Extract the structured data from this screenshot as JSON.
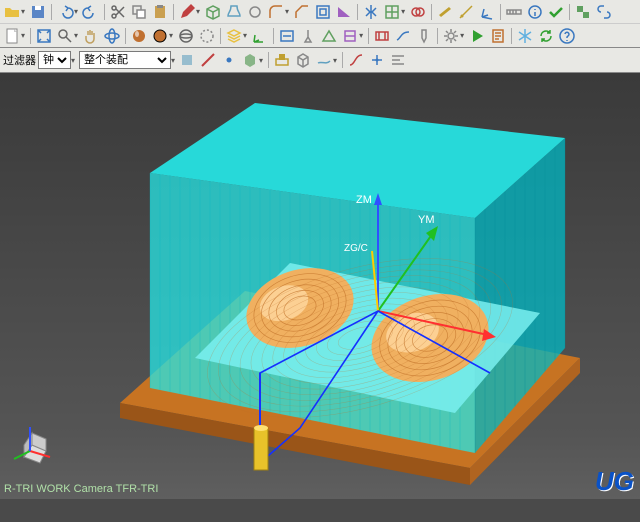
{
  "app": {
    "status_text": "R-TRI WORK Camera TFR-TRI",
    "watermark": "UG"
  },
  "filter": {
    "label": "过滤器",
    "mode_label": "钟",
    "assembly_selected": "整个装配"
  },
  "colors": {
    "toolbar_bg": "#e8e8e4",
    "viewport_top": "#3a3a3a",
    "viewport_bottom": "#5f5f5f",
    "model_ice": "#25e6e6",
    "model_ice_shade": "#00b8c4",
    "model_skin": "#f0b060",
    "model_skin_shade": "#c07028",
    "base_plate": "#c77322",
    "axis_x": "#ff3030",
    "axis_y": "#20c020",
    "axis_z": "#3050ff",
    "toolpath": "#1430ff",
    "status_color": "#b0e0a8",
    "watermark_color": "#0a52c7"
  },
  "axes": {
    "zm": "ZM",
    "ym": "YM",
    "zgc": "ZG/C"
  },
  "toolbar": {
    "row1": [
      {
        "name": "open-icon",
        "glyph": "folder",
        "c": "#e8c040"
      },
      {
        "name": "save-icon",
        "glyph": "floppy",
        "c": "#5a86c6"
      },
      {
        "name": "sep"
      },
      {
        "name": "undo-icon",
        "glyph": "undo",
        "c": "#3a78c0"
      },
      {
        "name": "redo-icon",
        "glyph": "redo",
        "c": "#3a78c0"
      },
      {
        "name": "sep"
      },
      {
        "name": "cut-icon",
        "glyph": "scissors",
        "c": "#666"
      },
      {
        "name": "copy-icon",
        "glyph": "copy",
        "c": "#888"
      },
      {
        "name": "paste-icon",
        "glyph": "paste",
        "c": "#caa050"
      },
      {
        "name": "sep"
      },
      {
        "name": "sketch-icon",
        "glyph": "pencil",
        "c": "#c04040"
      },
      {
        "name": "extrude-icon",
        "glyph": "box",
        "c": "#60a060"
      },
      {
        "name": "revolve-icon",
        "glyph": "vase",
        "c": "#60a0c0"
      },
      {
        "name": "hole-icon",
        "glyph": "circle",
        "c": "#888"
      },
      {
        "name": "blend-icon",
        "glyph": "fillet",
        "c": "#c07030"
      },
      {
        "name": "chamfer-icon",
        "glyph": "chamfer",
        "c": "#c07030"
      },
      {
        "name": "shell-icon",
        "glyph": "shell",
        "c": "#3a78c0"
      },
      {
        "name": "draft-icon",
        "glyph": "wedge",
        "c": "#a060c0"
      },
      {
        "name": "sep"
      },
      {
        "name": "mirror-icon",
        "glyph": "mirror",
        "c": "#3a78c0"
      },
      {
        "name": "pattern-icon",
        "glyph": "grid",
        "c": "#60a060"
      },
      {
        "name": "boolean-icon",
        "glyph": "venn",
        "c": "#c04040"
      },
      {
        "name": "sep"
      },
      {
        "name": "datum-plane-icon",
        "glyph": "plane",
        "c": "#c0a030"
      },
      {
        "name": "datum-axis-icon",
        "glyph": "axis",
        "c": "#c0a030"
      },
      {
        "name": "datum-csys-icon",
        "glyph": "csys",
        "c": "#3a78c0"
      },
      {
        "name": "sep"
      },
      {
        "name": "measure-icon",
        "glyph": "ruler",
        "c": "#888"
      },
      {
        "name": "info-icon",
        "glyph": "info",
        "c": "#3a78c0"
      },
      {
        "name": "check-icon",
        "glyph": "check",
        "c": "#30a030"
      },
      {
        "name": "sep"
      },
      {
        "name": "assembly-icon",
        "glyph": "asm",
        "c": "#60a060"
      },
      {
        "name": "constraint-icon",
        "glyph": "link",
        "c": "#3a78c0"
      }
    ],
    "row2": [
      {
        "name": "new-part-icon",
        "glyph": "newdoc",
        "c": "#fff"
      },
      {
        "name": "sep"
      },
      {
        "name": "view-fit-icon",
        "glyph": "fit",
        "c": "#3a78c0"
      },
      {
        "name": "view-zoom-icon",
        "glyph": "mag",
        "c": "#666"
      },
      {
        "name": "view-pan-icon",
        "glyph": "hand",
        "c": "#c0a060"
      },
      {
        "name": "view-rotate-icon",
        "glyph": "orbit",
        "c": "#3a78c0"
      },
      {
        "name": "sep"
      },
      {
        "name": "shaded-icon",
        "glyph": "sphere-s",
        "c": "#c07030"
      },
      {
        "name": "shaded-edges-icon",
        "glyph": "sphere-e",
        "c": "#c07030"
      },
      {
        "name": "wireframe-icon",
        "glyph": "wire",
        "c": "#666"
      },
      {
        "name": "hidden-icon",
        "glyph": "hidden",
        "c": "#888"
      },
      {
        "name": "sep"
      },
      {
        "name": "layer-icon",
        "glyph": "layers",
        "c": "#e8c040"
      },
      {
        "name": "wcs-icon",
        "glyph": "wcs",
        "c": "#30a030"
      },
      {
        "name": "sep"
      },
      {
        "name": "cam-program-icon",
        "glyph": "nc",
        "c": "#3a78c0"
      },
      {
        "name": "cam-tool-icon",
        "glyph": "tool",
        "c": "#888"
      },
      {
        "name": "cam-geom-icon",
        "glyph": "geom",
        "c": "#60a060"
      },
      {
        "name": "cam-method-icon",
        "glyph": "method",
        "c": "#a060c0"
      },
      {
        "name": "sep"
      },
      {
        "name": "cam-cavity-icon",
        "glyph": "cavity",
        "c": "#c04040"
      },
      {
        "name": "cam-contour-icon",
        "glyph": "contour",
        "c": "#3a78c0"
      },
      {
        "name": "cam-drill-icon",
        "glyph": "drill",
        "c": "#888"
      },
      {
        "name": "sep"
      },
      {
        "name": "cam-generate-icon",
        "glyph": "gear",
        "c": "#888"
      },
      {
        "name": "cam-verify-icon",
        "glyph": "play",
        "c": "#30a030"
      },
      {
        "name": "cam-post-icon",
        "glyph": "post",
        "c": "#c07030"
      },
      {
        "name": "sep"
      },
      {
        "name": "snow-icon",
        "glyph": "snow",
        "c": "#60b0e0"
      },
      {
        "name": "refresh-icon",
        "glyph": "refresh",
        "c": "#30a030"
      },
      {
        "name": "help-icon",
        "glyph": "help",
        "c": "#3a78c0"
      }
    ],
    "row3": [
      {
        "name": "sel-face-icon",
        "glyph": "face",
        "c": "#60a0c0"
      },
      {
        "name": "sel-edge-icon",
        "glyph": "edge",
        "c": "#c04040"
      },
      {
        "name": "sel-vertex-icon",
        "glyph": "dot",
        "c": "#3a78c0"
      },
      {
        "name": "sel-body-icon",
        "glyph": "body",
        "c": "#60a060"
      },
      {
        "name": "sep"
      },
      {
        "name": "sel-feature-icon",
        "glyph": "feat",
        "c": "#c0a030"
      },
      {
        "name": "sel-solid-icon",
        "glyph": "cube",
        "c": "#888"
      },
      {
        "name": "sel-sheet-icon",
        "glyph": "sheet",
        "c": "#60a0c0"
      },
      {
        "name": "sep"
      },
      {
        "name": "curve-icon",
        "glyph": "curve",
        "c": "#c04040"
      },
      {
        "name": "point-icon",
        "glyph": "pt",
        "c": "#3a78c0"
      },
      {
        "name": "align-icon",
        "glyph": "align",
        "c": "#888"
      }
    ]
  }
}
